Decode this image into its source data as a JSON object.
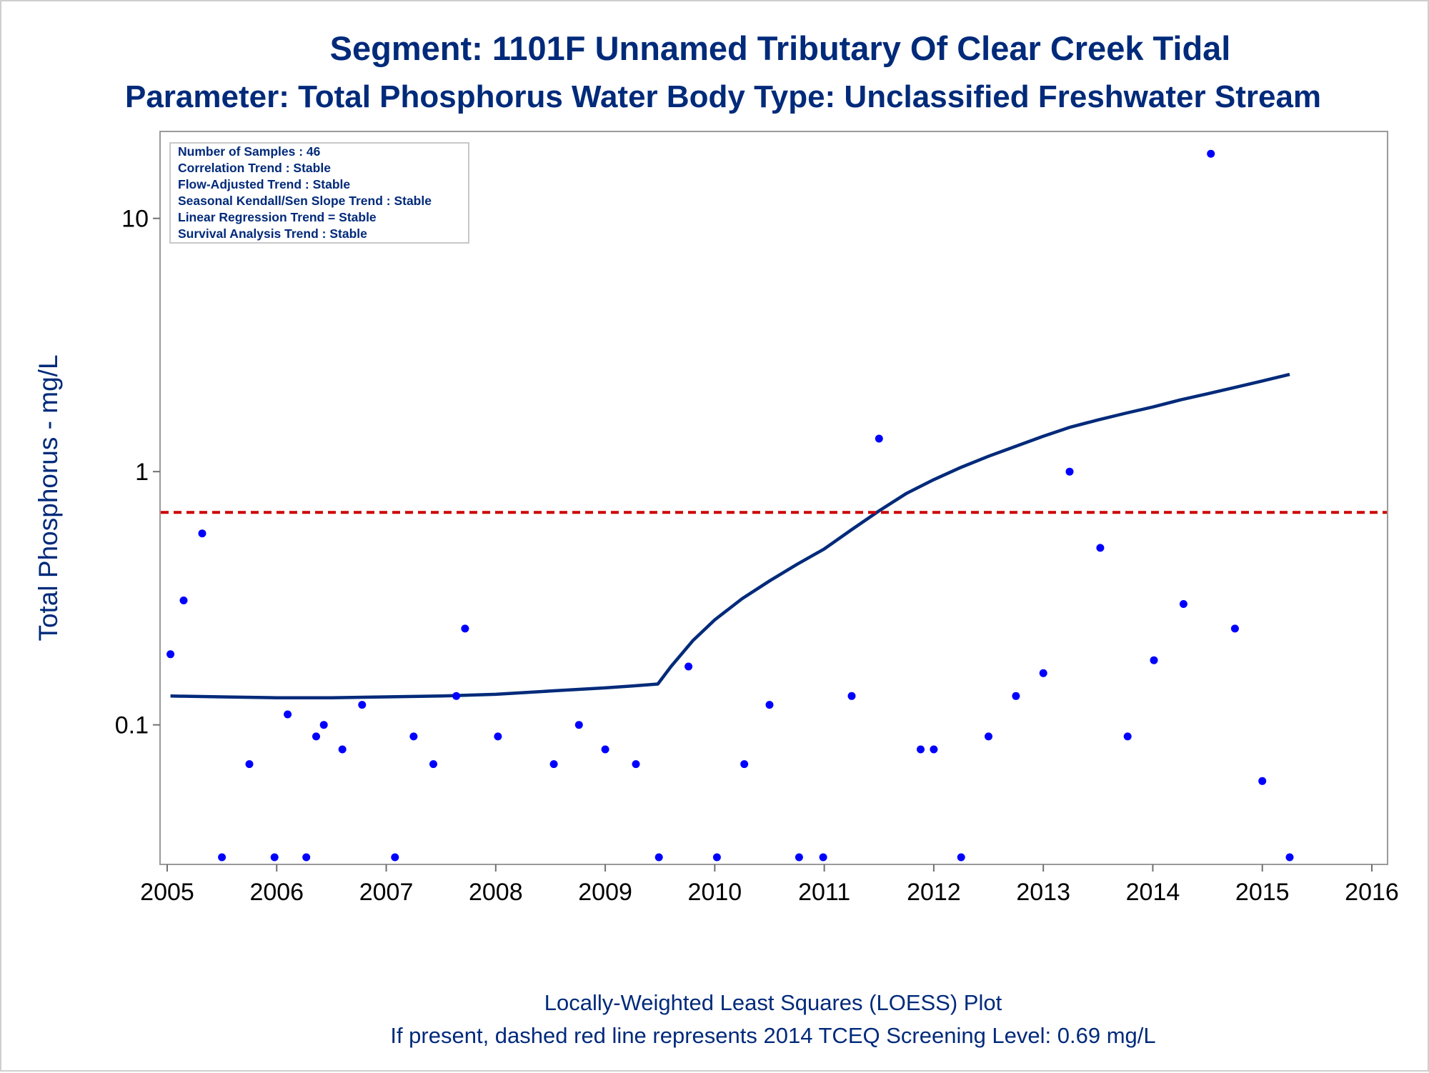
{
  "chart_data": {
    "type": "scatter",
    "title": "Segment: 1101F  Unnamed Tributary Of Clear Creek Tidal",
    "subtitle": "Parameter: Total Phosphorus   Water Body Type: Unclassified Freshwater Stream",
    "ylabel": "Total Phosphorus - mg/L",
    "xlabel": "",
    "yscale": "log",
    "xlim": [
      2005,
      2016
    ],
    "ylim": [
      0.03,
      20
    ],
    "x_ticks": [
      "2005",
      "2006",
      "2007",
      "2008",
      "2009",
      "2010",
      "2011",
      "2012",
      "2013",
      "2014",
      "2015",
      "2016"
    ],
    "y_ticks": [
      {
        "value": 10,
        "label": "10"
      },
      {
        "value": 1,
        "label": "1"
      },
      {
        "value": 0.1,
        "label": "0.1"
      }
    ],
    "grid": false,
    "legend": "none",
    "inset_box": {
      "placement": "top-left",
      "lines": [
        "Number of Samples : 46",
        "Correlation Trend : Stable",
        "Flow-Adjusted Trend : Stable",
        "Seasonal Kendall/Sen Slope Trend : Stable",
        "Linear Regression Trend = Stable",
        "Survival Analysis Trend : Stable"
      ]
    },
    "series": [
      {
        "kind": "scatter",
        "color": "#0000ff",
        "points": [
          [
            2005.03,
            0.19
          ],
          [
            2005.15,
            0.31
          ],
          [
            2005.32,
            0.57
          ],
          [
            2005.5,
            0.03
          ],
          [
            2005.75,
            0.07
          ],
          [
            2005.98,
            0.03
          ],
          [
            2006.1,
            0.11
          ],
          [
            2006.27,
            0.03
          ],
          [
            2006.36,
            0.09
          ],
          [
            2006.43,
            0.1
          ],
          [
            2006.6,
            0.08
          ],
          [
            2006.78,
            0.12
          ],
          [
            2007.08,
            0.03
          ],
          [
            2007.25,
            0.09
          ],
          [
            2007.43,
            0.07
          ],
          [
            2007.64,
            0.13
          ],
          [
            2007.72,
            0.24
          ],
          [
            2008.02,
            0.09
          ],
          [
            2008.53,
            0.07
          ],
          [
            2008.76,
            0.1
          ],
          [
            2009.0,
            0.08
          ],
          [
            2009.28,
            0.07
          ],
          [
            2009.49,
            0.03
          ],
          [
            2009.76,
            0.17
          ],
          [
            2010.02,
            0.03
          ],
          [
            2010.27,
            0.07
          ],
          [
            2010.5,
            0.12
          ],
          [
            2010.77,
            0.03
          ],
          [
            2010.99,
            0.03
          ],
          [
            2011.25,
            0.13
          ],
          [
            2011.5,
            1.35
          ],
          [
            2011.88,
            0.08
          ],
          [
            2012.0,
            0.08
          ],
          [
            2012.25,
            0.03
          ],
          [
            2012.5,
            0.09
          ],
          [
            2012.75,
            0.13
          ],
          [
            2013.0,
            0.16
          ],
          [
            2013.24,
            1.0
          ],
          [
            2013.52,
            0.5
          ],
          [
            2013.77,
            0.09
          ],
          [
            2014.01,
            0.18
          ],
          [
            2014.28,
            0.3
          ],
          [
            2014.53,
            18.0
          ],
          [
            2014.75,
            0.24
          ],
          [
            2015.0,
            0.06
          ],
          [
            2015.25,
            0.03
          ]
        ]
      },
      {
        "kind": "line",
        "name": "LOESS",
        "color": "#002a7a",
        "points": [
          [
            2005.03,
            0.13
          ],
          [
            2005.5,
            0.129
          ],
          [
            2006.0,
            0.128
          ],
          [
            2006.5,
            0.128
          ],
          [
            2007.0,
            0.129
          ],
          [
            2007.5,
            0.13
          ],
          [
            2008.0,
            0.132
          ],
          [
            2008.5,
            0.136
          ],
          [
            2009.0,
            0.14
          ],
          [
            2009.3,
            0.143
          ],
          [
            2009.48,
            0.145
          ],
          [
            2009.6,
            0.17
          ],
          [
            2009.8,
            0.215
          ],
          [
            2010.0,
            0.26
          ],
          [
            2010.25,
            0.315
          ],
          [
            2010.5,
            0.37
          ],
          [
            2010.75,
            0.43
          ],
          [
            2011.0,
            0.495
          ],
          [
            2011.25,
            0.59
          ],
          [
            2011.5,
            0.7
          ],
          [
            2011.75,
            0.82
          ],
          [
            2012.0,
            0.93
          ],
          [
            2012.25,
            1.04
          ],
          [
            2012.5,
            1.15
          ],
          [
            2012.75,
            1.26
          ],
          [
            2013.0,
            1.38
          ],
          [
            2013.25,
            1.5
          ],
          [
            2013.5,
            1.6
          ],
          [
            2013.75,
            1.7
          ],
          [
            2014.0,
            1.8
          ],
          [
            2014.25,
            1.92
          ],
          [
            2014.5,
            2.03
          ],
          [
            2014.75,
            2.15
          ],
          [
            2015.0,
            2.28
          ],
          [
            2015.25,
            2.42
          ]
        ]
      },
      {
        "kind": "reference_line",
        "value": 0.69,
        "color": "#cc0000",
        "style": "dashed"
      }
    ],
    "footnotes": [
      "Locally-Weighted Least Squares (LOESS) Plot",
      "If present, dashed red line represents 2014 TCEQ Screening Level: 0.69 mg/L"
    ]
  }
}
